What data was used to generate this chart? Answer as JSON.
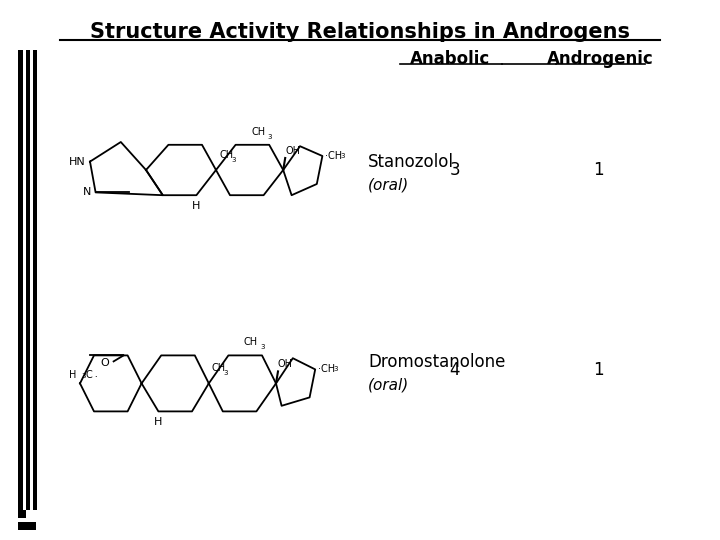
{
  "title": "Structure Activity Relationships in Androgens",
  "title_fontsize": 15,
  "background_color": "#ffffff",
  "header_anabolic": "Anabolic",
  "header_androgenic": "Androgenic",
  "header_fontsize": 12,
  "compound1_name": "Stanozolol",
  "compound1_oral": "(oral)",
  "compound1_anabolic": "3",
  "compound1_androgenic": "1",
  "compound2_name": "Dromostanolone",
  "compound2_oral": "(oral)",
  "compound2_anabolic": "4",
  "compound2_androgenic": "1",
  "text_fontsize": 12,
  "small_fontsize": 8
}
